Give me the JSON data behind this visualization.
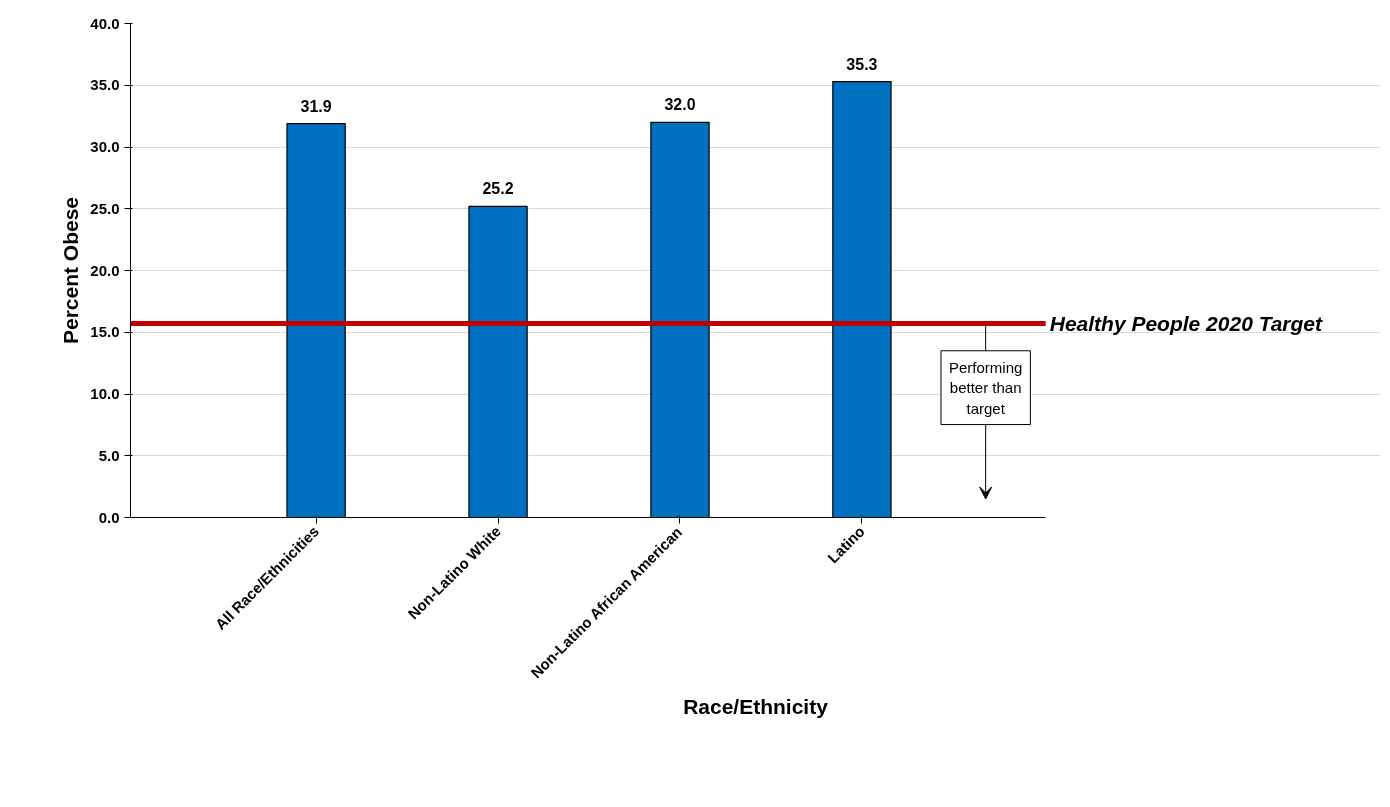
{
  "chart_data": {
    "type": "bar",
    "categories": [
      "All Race/Ethnicities",
      "Non-Latino White",
      "Non-Latino African American",
      "Latino"
    ],
    "values": [
      31.9,
      25.2,
      32.0,
      35.3
    ],
    "color": "#0070c0",
    "xlabel": "Race/Ethnicity",
    "ylabel": "Percent Obese",
    "ylim": [
      0,
      40
    ],
    "yticks": [
      {
        "value": 0,
        "label": "0.0"
      },
      {
        "value": 5,
        "label": "5.0"
      },
      {
        "value": 10,
        "label": "10.0"
      },
      {
        "value": 15,
        "label": "15.0"
      },
      {
        "value": 20,
        "label": "20.0"
      },
      {
        "value": 25,
        "label": "25.0"
      },
      {
        "value": 30,
        "label": "30.0"
      },
      {
        "value": 35,
        "label": "35.0"
      },
      {
        "value": 40,
        "label": "40.0"
      }
    ],
    "grid": "y",
    "value_labels": [
      "31.9",
      "25.2",
      "32.0",
      "35.3"
    ],
    "ref_lines": [
      {
        "axis": "y",
        "value": 15.7,
        "label": "Healthy People 2020 Target",
        "color": "#c00000"
      }
    ],
    "annotations": [
      "Performing\nbetter than\ntarget"
    ]
  }
}
